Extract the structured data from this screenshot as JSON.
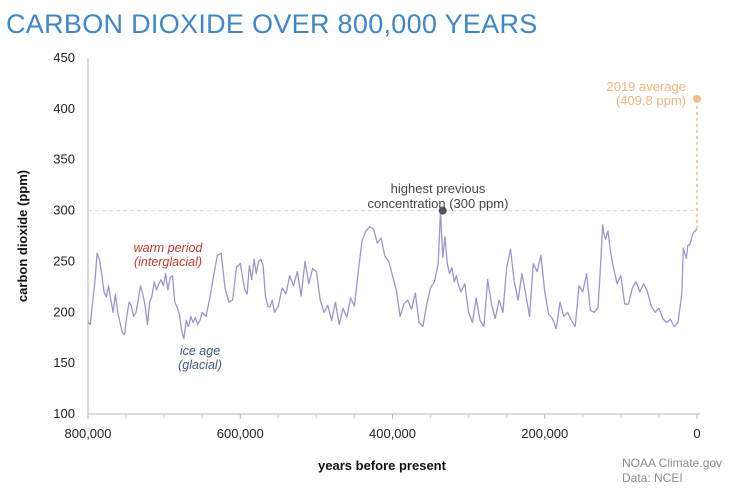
{
  "chart_data": {
    "type": "line",
    "title": "CARBON DIOXIDE OVER 800,000 YEARS",
    "xlabel": "years before present",
    "ylabel": "carbon dioxide (ppm)",
    "xlim": [
      800000,
      0
    ],
    "ylim": [
      100,
      450
    ],
    "x_ticks": [
      "800,000",
      "600,000",
      "400,000",
      "200,000",
      "0"
    ],
    "y_ticks": [
      "100",
      "150",
      "200",
      "250",
      "300",
      "350",
      "400",
      "450"
    ],
    "colors": {
      "series": "#9a96cf",
      "highlight": "#f2c08e",
      "point": "#555555",
      "warm": "#c0392b",
      "glacial": "#3d5a80",
      "reference": "#d8d8d8"
    },
    "series": [
      {
        "x": [
          800000,
          797000,
          794000,
          791000,
          788000,
          785000,
          782000,
          779000,
          776000,
          773000,
          770000,
          767000,
          764000,
          761000,
          758000,
          755000,
          752000,
          749000,
          746000,
          743000,
          740000,
          737000,
          734000,
          731000,
          728000,
          725000,
          722000,
          719000,
          716000,
          713000,
          710000,
          707000,
          704000,
          701000,
          698000,
          695000,
          692000,
          689000,
          686000,
          683000,
          680000,
          677000,
          674000,
          671000,
          668000,
          665000,
          662000,
          659000,
          656000,
          653000,
          650000,
          645000,
          640000,
          635000,
          630000,
          625000,
          620000,
          615000,
          610000,
          605000,
          600000,
          597000,
          594000,
          591000,
          588000,
          585000,
          582000,
          579000,
          576000,
          573000,
          570000,
          567000,
          564000,
          561000,
          558000,
          555000,
          550000,
          545000,
          540000,
          535000,
          530000,
          525000,
          520000,
          515000,
          510000,
          505000,
          500000,
          495000,
          490000,
          485000,
          480000,
          475000,
          470000,
          465000,
          460000,
          455000,
          450000,
          445000,
          440000,
          435000,
          430000,
          425000,
          420000,
          415000,
          410000,
          405000,
          400000,
          395000,
          390000,
          385000,
          380000,
          375000,
          370000,
          365000,
          360000,
          355000,
          350000,
          345000,
          340000,
          337000,
          334000,
          331000,
          328000,
          325000,
          322000,
          319000,
          316000,
          313000,
          310000,
          305000,
          300000,
          295000,
          290000,
          285000,
          280000,
          275000,
          270000,
          265000,
          260000,
          255000,
          250000,
          245000,
          240000,
          235000,
          230000,
          225000,
          220000,
          215000,
          210000,
          205000,
          200000,
          195000,
          190000,
          185000,
          180000,
          175000,
          170000,
          165000,
          160000,
          155000,
          150000,
          145000,
          140000,
          135000,
          130000,
          128000,
          126000,
          124000,
          122000,
          120000,
          117000,
          114000,
          111000,
          108000,
          105000,
          100000,
          95000,
          90000,
          85000,
          80000,
          75000,
          70000,
          65000,
          60000,
          55000,
          50000,
          45000,
          40000,
          35000,
          30000,
          25000,
          20000,
          18000,
          16000,
          14000,
          12000,
          10000,
          8000,
          6000,
          4000,
          2000,
          500
        ],
        "y": [
          190,
          188,
          210,
          230,
          258,
          252,
          238,
          220,
          215,
          226,
          212,
          200,
          218,
          200,
          190,
          180,
          178,
          196,
          210,
          206,
          196,
          200,
          212,
          226,
          218,
          207,
          188,
          210,
          216,
          230,
          222,
          228,
          232,
          226,
          238,
          222,
          234,
          236,
          210,
          205,
          198,
          182,
          174,
          192,
          186,
          196,
          190,
          195,
          188,
          192,
          200,
          196,
          214,
          236,
          256,
          258,
          224,
          210,
          212,
          244,
          248,
          235,
          222,
          218,
          246,
          232,
          252,
          238,
          250,
          252,
          246,
          216,
          206,
          205,
          212,
          200,
          206,
          224,
          218,
          236,
          226,
          240,
          216,
          250,
          228,
          243,
          240,
          212,
          200,
          207,
          192,
          210,
          188,
          204,
          195,
          214,
          206,
          240,
          270,
          280,
          284,
          282,
          268,
          273,
          255,
          250,
          236,
          222,
          196,
          208,
          212,
          203,
          219,
          190,
          186,
          208,
          224,
          230,
          248,
          300,
          254,
          274,
          248,
          238,
          244,
          230,
          236,
          226,
          220,
          228,
          200,
          190,
          214,
          192,
          186,
          232,
          208,
          194,
          212,
          200,
          244,
          262,
          230,
          212,
          238,
          218,
          196,
          248,
          240,
          256,
          220,
          198,
          194,
          184,
          210,
          196,
          200,
          192,
          186,
          226,
          220,
          238,
          202,
          200,
          205,
          230,
          256,
          286,
          276,
          272,
          280,
          262,
          248,
          238,
          228,
          236,
          208,
          208,
          224,
          230,
          220,
          228,
          220,
          206,
          200,
          204,
          194,
          190,
          193,
          186,
          190,
          218,
          263,
          258,
          253,
          266,
          266,
          270,
          276,
          279,
          280,
          282
        ]
      },
      {
        "name": "2019 average",
        "x": [
          0
        ],
        "y": [
          409.8
        ]
      },
      {
        "x": [
          334000
        ],
        "y": [
          300
        ]
      }
    ],
    "annotations": {
      "current_line1": "2019 average",
      "current_line2": "(409.8 ppm)",
      "peak_line1": "highest previous",
      "peak_line2": "concentration (300 ppm)",
      "warm_line1": "warm period",
      "warm_line2": "(interglacial)",
      "ice_line1": "ice age",
      "ice_line2": "(glacial)"
    },
    "grid": false
  },
  "credit": {
    "line1": "NOAA Climate.gov",
    "line2": "Data: NCEI"
  }
}
